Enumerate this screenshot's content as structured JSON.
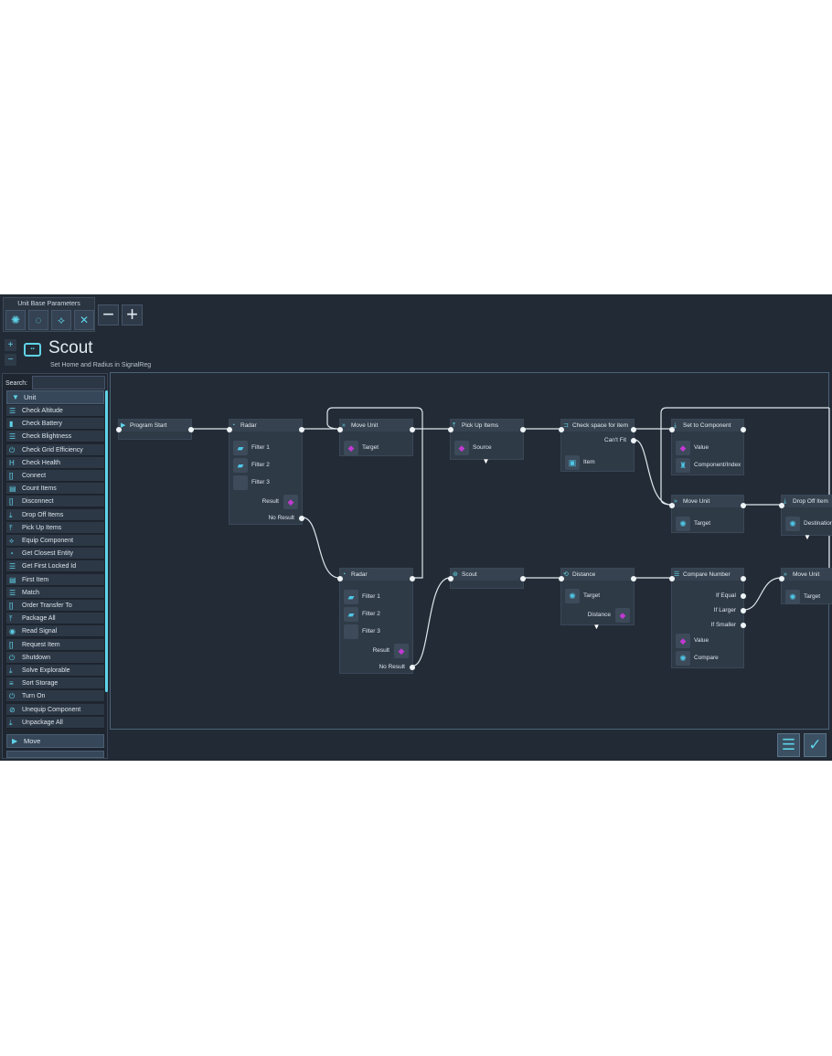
{
  "toolbar": {
    "panel_title": "Unit Base Parameters",
    "param_icons": [
      "unit-icon",
      "loop-icon",
      "link-icon",
      "radius-icon"
    ],
    "minus": "−",
    "plus": "+"
  },
  "header": {
    "title": "Scout",
    "subtitle": "Set Home and Radius in SignalReg",
    "zoom_in": "+",
    "zoom_out": "−"
  },
  "sidebar": {
    "search_label": "Search:",
    "search_value": "",
    "category": "Unit",
    "items": [
      {
        "label": "Check Altitude",
        "icon": "equals-icon"
      },
      {
        "label": "Check Battery",
        "icon": "battery-icon"
      },
      {
        "label": "Check Blightness",
        "icon": "equals-icon"
      },
      {
        "label": "Check Grid Efficiency",
        "icon": "power-icon"
      },
      {
        "label": "Check Health",
        "icon": "health-icon"
      },
      {
        "label": "Connect",
        "icon": "bracket-icon"
      },
      {
        "label": "Count Items",
        "icon": "count-icon"
      },
      {
        "label": "Disconnect",
        "icon": "bracket-icon"
      },
      {
        "label": "Drop Off Items",
        "icon": "drop-icon"
      },
      {
        "label": "Pick Up Items",
        "icon": "pickup-icon"
      },
      {
        "label": "Equip Component",
        "icon": "equip-icon"
      },
      {
        "label": "Get Closest Entity",
        "icon": "radar-icon"
      },
      {
        "label": "Get First Locked Id",
        "icon": "equals-icon"
      },
      {
        "label": "First Item",
        "icon": "count-icon"
      },
      {
        "label": "Match",
        "icon": "equals-icon"
      },
      {
        "label": "Order Transfer To",
        "icon": "bracket-icon"
      },
      {
        "label": "Package All",
        "icon": "pickup-icon"
      },
      {
        "label": "Read Signal",
        "icon": "signal-icon"
      },
      {
        "label": "Request Item",
        "icon": "bracket-icon"
      },
      {
        "label": "Shutdown",
        "icon": "power-icon"
      },
      {
        "label": "Solve Explorable",
        "icon": "drop-icon"
      },
      {
        "label": "Sort Storage",
        "icon": "sort-icon"
      },
      {
        "label": "Turn On",
        "icon": "power-icon"
      },
      {
        "label": "Unequip Component",
        "icon": "unequip-icon"
      },
      {
        "label": "Unpackage All",
        "icon": "drop-icon"
      }
    ],
    "next_category": "Move"
  },
  "nodes": [
    {
      "title": "Program Start",
      "icon": "play-icon",
      "rows": []
    },
    {
      "title": "Radar",
      "icon": "radar-icon",
      "rows": [
        {
          "label": "Filter 1",
          "slot": "filter"
        },
        {
          "label": "Filter 2",
          "slot": "filter"
        },
        {
          "label": "Filter 3",
          "slot": "empty"
        },
        {
          "label": "Result",
          "slot": "register",
          "reg": "A",
          "right": true
        },
        {
          "label": "No Result",
          "port": true
        }
      ]
    },
    {
      "title": "Move Unit",
      "icon": "move-icon",
      "rows": [
        {
          "label": "Target",
          "slot": "register",
          "reg": "A"
        }
      ]
    },
    {
      "title": "Pick Up Items",
      "icon": "pickup-icon",
      "rows": [
        {
          "label": "Source",
          "slot": "register",
          "reg": "A"
        }
      ],
      "expand": true
    },
    {
      "title": "Check space for item",
      "icon": "check-icon",
      "rows": [
        {
          "label": "Can't Fit",
          "port": true
        },
        {
          "label": "Item",
          "slot": "item"
        }
      ]
    },
    {
      "title": "Set to Component",
      "icon": "set-icon",
      "rows": [
        {
          "label": "Value",
          "slot": "register",
          "reg": "A"
        },
        {
          "label": "Component/Index",
          "slot": "component"
        }
      ]
    },
    {
      "title": "Move Unit",
      "icon": "move-icon",
      "rows": [
        {
          "label": "Target",
          "slot": "unit"
        }
      ]
    },
    {
      "title": "Drop Off Item",
      "icon": "drop-icon",
      "rows": [
        {
          "label": "Destination",
          "slot": "unit"
        }
      ],
      "expand": true
    },
    {
      "title": "Radar",
      "icon": "radar-icon",
      "rows": [
        {
          "label": "Filter 1",
          "slot": "filter"
        },
        {
          "label": "Filter 2",
          "slot": "filter"
        },
        {
          "label": "Filter 3",
          "slot": "empty"
        },
        {
          "label": "Result",
          "slot": "register",
          "reg": "A",
          "right": true
        },
        {
          "label": "No Result",
          "port": true
        }
      ]
    },
    {
      "title": "Scout",
      "icon": "scout-icon",
      "rows": []
    },
    {
      "title": "Distance",
      "icon": "distance-icon",
      "rows": [
        {
          "label": "Target",
          "slot": "unit"
        },
        {
          "label": "Distance",
          "slot": "register",
          "reg": "C",
          "right": true
        }
      ],
      "expand": true
    },
    {
      "title": "Compare Number",
      "icon": "equals-icon",
      "rows": [
        {
          "label": "If Equal",
          "port": true
        },
        {
          "label": "If Larger",
          "port": true
        },
        {
          "label": "If Smaller",
          "port": true
        },
        {
          "label": "Value",
          "slot": "register",
          "reg": "C"
        },
        {
          "label": "Compare",
          "slot": "unit"
        }
      ]
    },
    {
      "title": "Move Unit",
      "icon": "move-icon",
      "rows": [
        {
          "label": "Target",
          "slot": "unit"
        }
      ]
    }
  ],
  "footer": {
    "list_icon": "list-icon",
    "confirm_icon": "check-icon"
  },
  "colors": {
    "accent": "#5fd3e8",
    "register": "#c03ad0",
    "background": "#222a35"
  }
}
